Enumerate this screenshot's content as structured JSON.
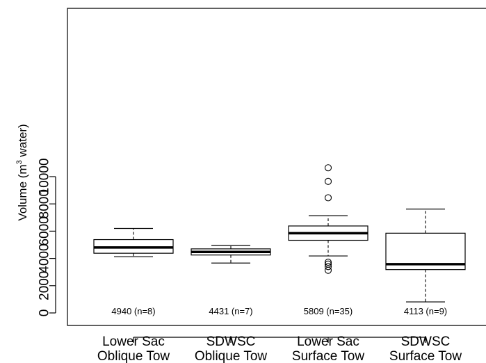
{
  "chart_data": {
    "type": "box",
    "title": "",
    "xlabel": "",
    "ylabel": {
      "prefix": "Volume  (m",
      "superscript": "3",
      "suffix": " water)"
    },
    "ylim": [
      -400,
      11000
    ],
    "yticks": [
      0,
      2000,
      4000,
      6000,
      8000,
      10000
    ],
    "grid": false,
    "legend": "none",
    "colors": {
      "box": "#ffffff",
      "stroke": "#000000"
    },
    "categories": [
      {
        "line1": "Lower Sac",
        "line2": "Oblique Tow"
      },
      {
        "line1": "SDWSC",
        "line2": "Oblique Tow"
      },
      {
        "line1": "Lower Sac",
        "line2": "Surface Tow"
      },
      {
        "line1": "SDWSC",
        "line2": "Surface Tow"
      }
    ],
    "boxes": [
      {
        "whisker_low": 4130,
        "q1": 4380,
        "median": 4800,
        "q3": 5380,
        "whisker_high": 6200,
        "outliers": [],
        "label": "4940 (n=8)"
      },
      {
        "whisker_low": 3660,
        "q1": 4250,
        "median": 4480,
        "q3": 4700,
        "whisker_high": 4950,
        "outliers": [],
        "label": "4431 (n=7)"
      },
      {
        "whisker_low": 4180,
        "q1": 5330,
        "median": 5850,
        "q3": 6380,
        "whisker_high": 7130,
        "outliers": [
          10650,
          9650,
          8450,
          3720,
          3580,
          3400,
          3130
        ],
        "label": "5809 (n=35)"
      },
      {
        "whisker_low": 810,
        "q1": 3180,
        "median": 3580,
        "q3": 5850,
        "whisker_high": 7620,
        "outliers": [],
        "label": "4113 (n=9)"
      }
    ]
  }
}
